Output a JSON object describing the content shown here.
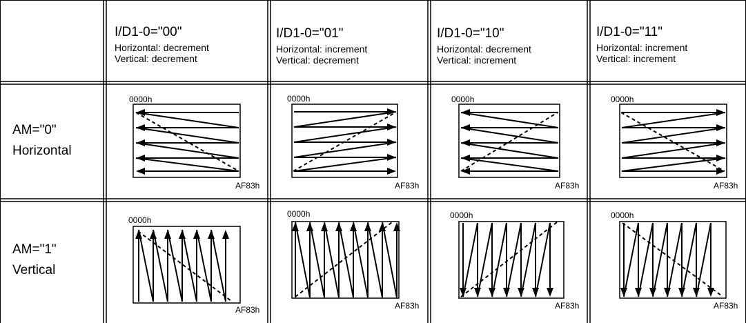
{
  "columns": [
    {
      "code": "I/D1-0=\"00\"",
      "horizontal": "Horizontal: decrement",
      "vertical": "Vertical: decrement"
    },
    {
      "code": "I/D1-0=\"01\"",
      "horizontal": "Horizontal: increment",
      "vertical": "Vertical: decrement"
    },
    {
      "code": "I/D1-0=\"10\"",
      "horizontal": "Horizontal: decrement",
      "vertical": "Vertical: increment"
    },
    {
      "code": "I/D1-0=\"11\"",
      "horizontal": "Horizontal: increment",
      "vertical": "Vertical: increment"
    }
  ],
  "rows": [
    {
      "line1": "AM=\"0\"",
      "line2": "Horizontal"
    },
    {
      "line1": "AM=\"1\"",
      "line2": "Vertical"
    }
  ],
  "start_address": "0000h",
  "end_address": "AF83h"
}
